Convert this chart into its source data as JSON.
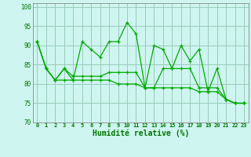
{
  "xlabel": "Humidité relative (%)",
  "background_color": "#cef5f0",
  "grid_color": "#99ccbb",
  "line_color": "#00aa00",
  "xlim": [
    -0.5,
    23.5
  ],
  "ylim": [
    70,
    101
  ],
  "yticks": [
    70,
    75,
    80,
    85,
    90,
    95,
    100
  ],
  "xticks": [
    0,
    1,
    2,
    3,
    4,
    5,
    6,
    7,
    8,
    9,
    10,
    11,
    12,
    13,
    14,
    15,
    16,
    17,
    18,
    19,
    20,
    21,
    22,
    23
  ],
  "series": [
    [
      91,
      84,
      81,
      84,
      81,
      91,
      89,
      87,
      91,
      91,
      96,
      93,
      79,
      90,
      89,
      84,
      90,
      86,
      89,
      78,
      84,
      76,
      75,
      75
    ],
    [
      91,
      84,
      81,
      84,
      82,
      82,
      82,
      82,
      83,
      83,
      83,
      83,
      79,
      79,
      84,
      84,
      84,
      84,
      79,
      79,
      79,
      76,
      75,
      75
    ],
    [
      91,
      84,
      81,
      81,
      81,
      81,
      81,
      81,
      81,
      80,
      80,
      80,
      79,
      79,
      79,
      79,
      79,
      79,
      78,
      78,
      78,
      76,
      75,
      75
    ]
  ]
}
